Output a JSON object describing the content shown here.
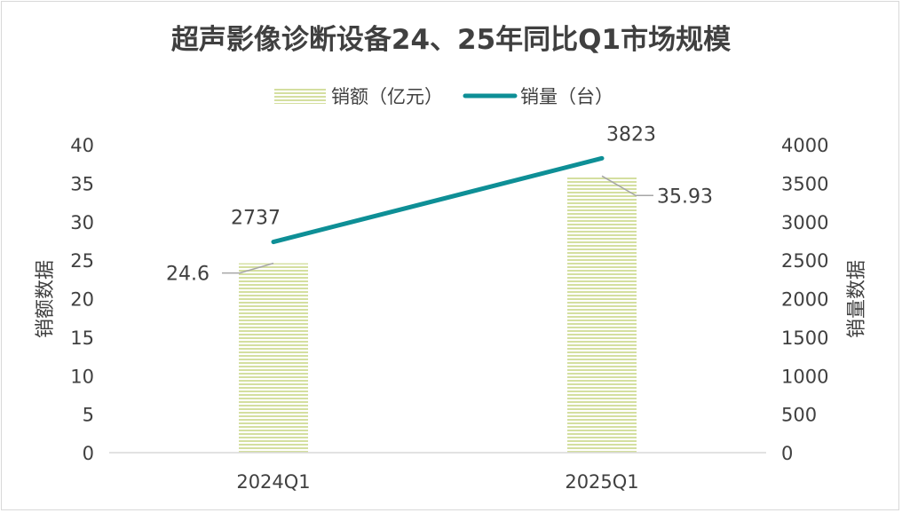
{
  "chart_data": {
    "type": "bar+line",
    "title": "超声影像诊断设备24、25年同比Q1市场规模",
    "categories": [
      "2024Q1",
      "2025Q1"
    ],
    "series": [
      {
        "name": "销额（亿元）",
        "type": "bar",
        "axis": "left",
        "values": [
          24.6,
          35.93
        ],
        "value_labels": [
          "24.6",
          "35.93"
        ],
        "color": "#d4dfa0"
      },
      {
        "name": "销量（台）",
        "type": "line",
        "axis": "right",
        "values": [
          2737,
          3823
        ],
        "value_labels": [
          "2737",
          "3823"
        ],
        "color": "#0e8f96"
      }
    ],
    "ylabel_left": "销额数据",
    "ylabel_right": "销量数据",
    "ylim_left": [
      0,
      40
    ],
    "ylim_right": [
      0,
      4000
    ],
    "yticks_left": [
      "0",
      "5",
      "10",
      "15",
      "20",
      "25",
      "30",
      "35",
      "40"
    ],
    "yticks_right": [
      "0",
      "500",
      "1000",
      "1500",
      "2000",
      "2500",
      "3000",
      "3500",
      "4000"
    ],
    "legend_position": "top"
  }
}
